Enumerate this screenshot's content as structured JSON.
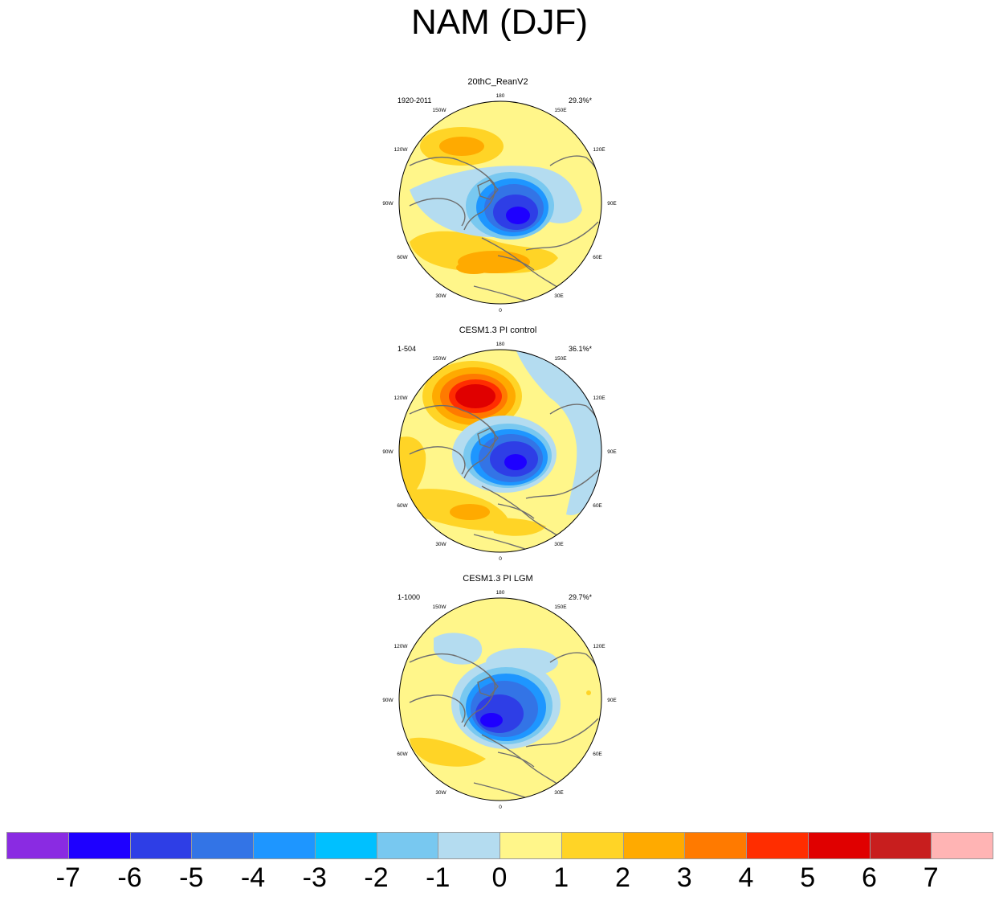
{
  "title": "NAM (DJF)",
  "lon_labels": [
    "180",
    "150E",
    "120E",
    "90E",
    "60E",
    "30E",
    "0",
    "30W",
    "60W",
    "90W",
    "120W",
    "150W"
  ],
  "panels": [
    {
      "title": "20thC_ReanV2",
      "years": "1920-2011",
      "variance": "29.3%*"
    },
    {
      "title": "CESM1.3 PI control",
      "years": "1-504",
      "variance": "36.1%*"
    },
    {
      "title": "CESM1.3 PI LGM",
      "years": "1-1000",
      "variance": "29.7%*"
    }
  ],
  "colorbar": {
    "colors": [
      "#8a2be2",
      "#1e00ff",
      "#2e3ee6",
      "#3374e6",
      "#1e96ff",
      "#00c0ff",
      "#78c8f0",
      "#b4dcf0",
      "#fff68a",
      "#ffd426",
      "#ffaa00",
      "#ff7a00",
      "#ff2d00",
      "#e00000",
      "#c81e1e",
      "#ffb4b4"
    ],
    "labels": [
      "-7",
      "-6",
      "-5",
      "-4",
      "-3",
      "-2",
      "-1",
      "0",
      "1",
      "2",
      "3",
      "4",
      "5",
      "6",
      "7"
    ]
  },
  "colors": {
    "land_outline": "#6e6e6e",
    "ring": "#000000"
  }
}
